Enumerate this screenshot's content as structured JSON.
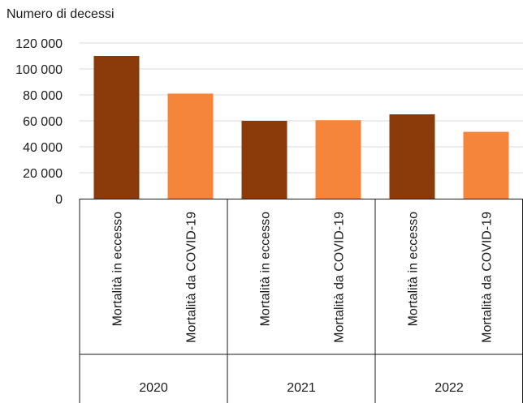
{
  "chart_data": {
    "type": "bar",
    "ylabel": "Numero di decessi",
    "ylim": [
      0,
      120000
    ],
    "yticks": [
      {
        "value": 0,
        "label": "0"
      },
      {
        "value": 20000,
        "label": "20 000"
      },
      {
        "value": 40000,
        "label": "40 000"
      },
      {
        "value": 60000,
        "label": "60 000"
      },
      {
        "value": 80000,
        "label": "80 000"
      },
      {
        "value": 100000,
        "label": "100 000"
      },
      {
        "value": 120000,
        "label": "120 000"
      }
    ],
    "grid": true,
    "groups": [
      {
        "label": "2020",
        "bars": [
          {
            "label": "Mortalità in eccesso",
            "value": 110000,
            "color": "#8b3a0a"
          },
          {
            "label": "Mortalità da COVID-19",
            "value": 81000,
            "color": "#f5853a"
          }
        ]
      },
      {
        "label": "2021",
        "bars": [
          {
            "label": "Mortalità in eccesso",
            "value": 60000,
            "color": "#8b3a0a"
          },
          {
            "label": "Mortalità da COVID-19",
            "value": 60500,
            "color": "#f5853a"
          }
        ]
      },
      {
        "label": "2022",
        "bars": [
          {
            "label": "Mortalità in eccesso",
            "value": 65000,
            "color": "#8b3a0a"
          },
          {
            "label": "Mortalità da COVID-19",
            "value": 51500,
            "color": "#f5853a"
          }
        ]
      }
    ]
  }
}
